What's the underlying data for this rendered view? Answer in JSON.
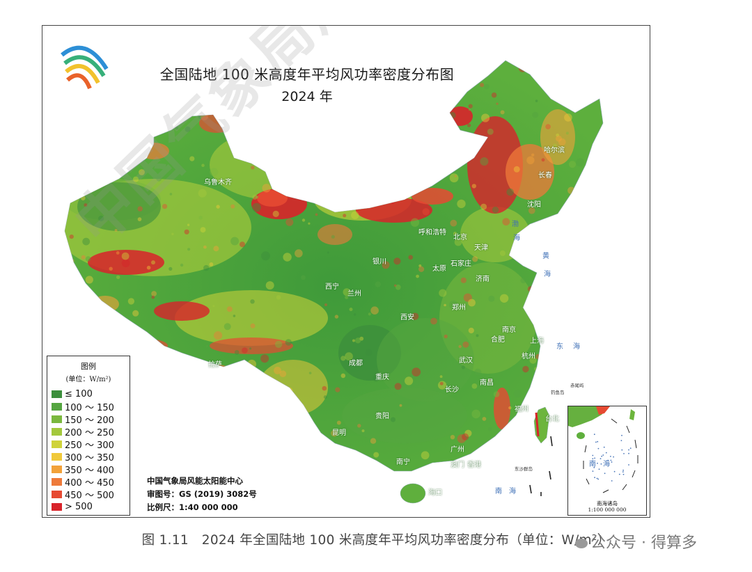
{
  "map": {
    "title": "全国陆地 100 米高度年平均风功率密度分布图",
    "year": "2024 年",
    "legend": {
      "title": "图例",
      "unit": "(单位：W/m²)",
      "items": [
        {
          "label": "≤ 100",
          "color": "#3c8f3c"
        },
        {
          "label": "100 ～ 150",
          "color": "#55a540"
        },
        {
          "label": "150 ～ 200",
          "color": "#7ab83e"
        },
        {
          "label": "200 ～ 250",
          "color": "#a3c83c"
        },
        {
          "label": "250 ～ 300",
          "color": "#cfd33a"
        },
        {
          "label": "300 ～ 350",
          "color": "#f0c93a"
        },
        {
          "label": "350 ～ 400",
          "color": "#f2a23a"
        },
        {
          "label": "400 ～ 450",
          "color": "#ee7a3a"
        },
        {
          "label": "450 ～ 500",
          "color": "#e64a32"
        },
        {
          "label": "> 500",
          "color": "#d8232a"
        }
      ]
    },
    "credits": {
      "org": "中国气象局风能太阳能中心",
      "review": "审图号：GS (2019) 3082号",
      "scale": "比例尺：1:40 000 000"
    },
    "cities": [
      "哈尔滨",
      "长春",
      "沈阳",
      "呼和浩特",
      "北京",
      "天津",
      "石家庄",
      "太原",
      "济南",
      "银川",
      "西宁",
      "兰州",
      "西安",
      "郑州",
      "南京",
      "合肥",
      "上海",
      "杭州",
      "武汉",
      "成都",
      "重庆",
      "南昌",
      "长沙",
      "福州",
      "台北",
      "贵阳",
      "昆明",
      "广州",
      "南宁",
      "澳门",
      "香港",
      "海口",
      "乌鲁木齐",
      "拉萨"
    ],
    "seas": [
      "渤",
      "海",
      "黄",
      "海",
      "东",
      "海",
      "南",
      "海"
    ],
    "islands": [
      "钓鱼岛",
      "赤尾屿",
      "东沙群岛"
    ],
    "inset": {
      "sea": "南　海",
      "label_1": "南海诸岛",
      "label_2": "1:100 000 000"
    },
    "watermark": "中国气象局风能"
  },
  "caption": "图 1.11　2024 年全国陆地 100 米高度年平均风功率密度分布（单位：W/m²）",
  "wechat": "公众号 · 得算多",
  "colors": {
    "low": "#3c8f3c",
    "mid": "#cfd33a",
    "high": "#d8232a",
    "sea": "#3d6fb6"
  }
}
